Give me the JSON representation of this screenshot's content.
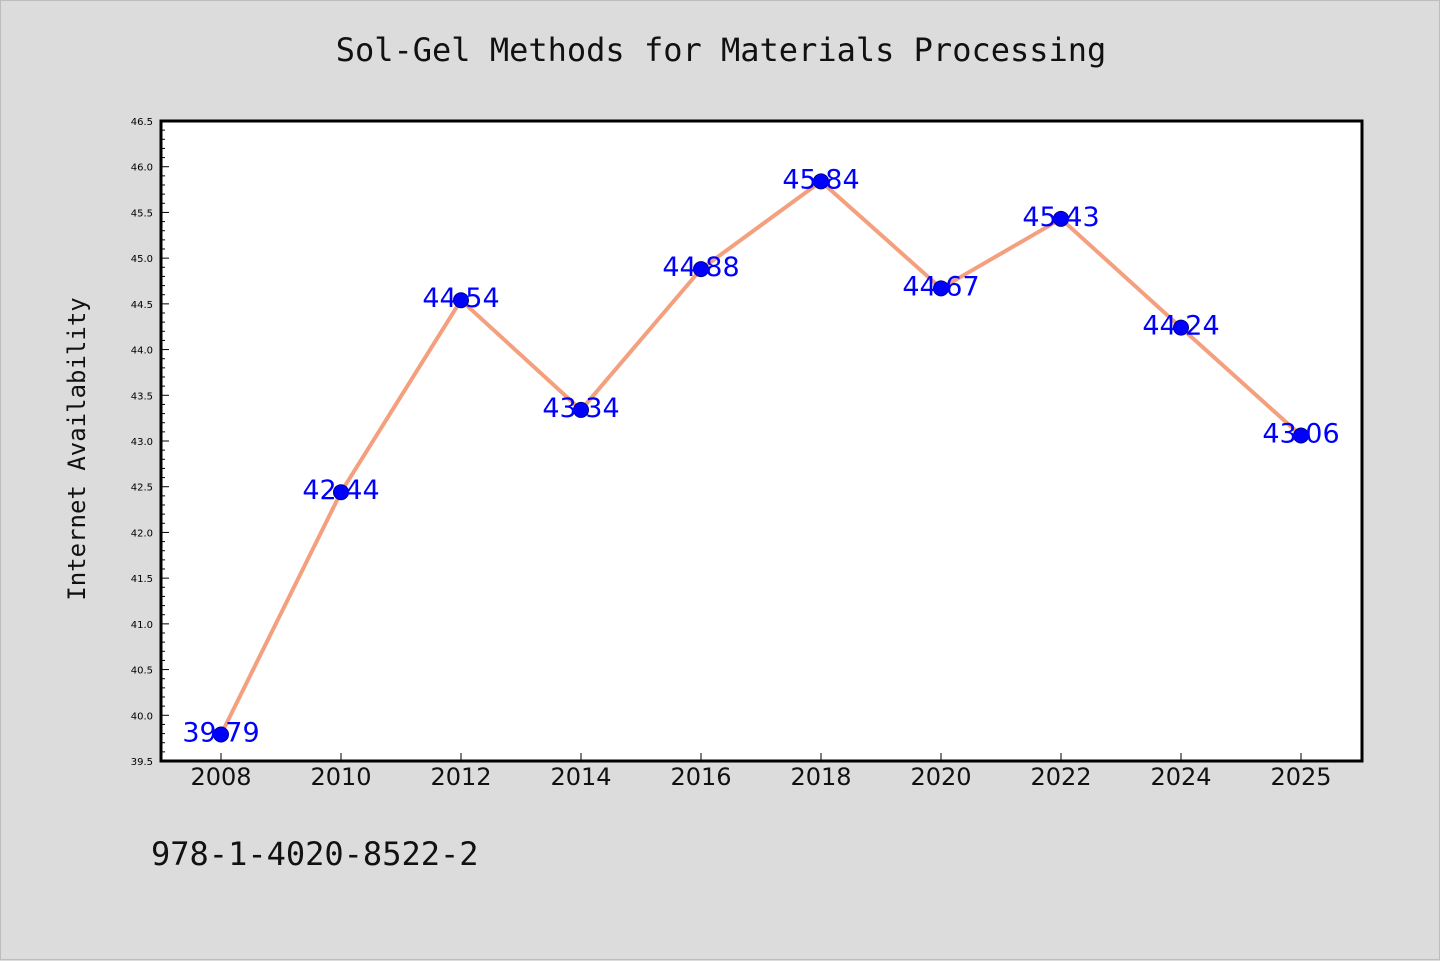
{
  "chart_data": {
    "type": "line",
    "title": "Sol-Gel Methods for Materials Processing",
    "xlabel": "",
    "ylabel": "Internet Availability",
    "categories": [
      "2008",
      "2010",
      "2012",
      "2014",
      "2016",
      "2018",
      "2020",
      "2022",
      "2024",
      "2025"
    ],
    "series": [
      {
        "values": [
          39.79,
          42.44,
          44.54,
          43.34,
          44.88,
          45.84,
          44.67,
          45.43,
          44.24,
          43.06
        ]
      }
    ],
    "data_labels": [
      "39.79",
      "42.44",
      "44.54",
      "43.34",
      "44.88",
      "45.84",
      "44.67",
      "45.43",
      "44.24",
      "43.06"
    ],
    "ylim": [
      39.5,
      46.5
    ],
    "y_ticks": [
      "39.5",
      "40.0",
      "40.5",
      "41.0",
      "41.5",
      "42.0",
      "42.5",
      "43.0",
      "43.5",
      "44.0",
      "44.5",
      "45.0",
      "45.5",
      "46.0",
      "46.5"
    ],
    "grid": false,
    "legend": "none",
    "colors": {
      "line": "#f4a07e",
      "marker": "#0000ff",
      "label": "#0000ff",
      "background": "#dcdcdc",
      "plot_area": "#ffffff"
    }
  },
  "footer": {
    "code": "978-1-4020-8522-2"
  }
}
